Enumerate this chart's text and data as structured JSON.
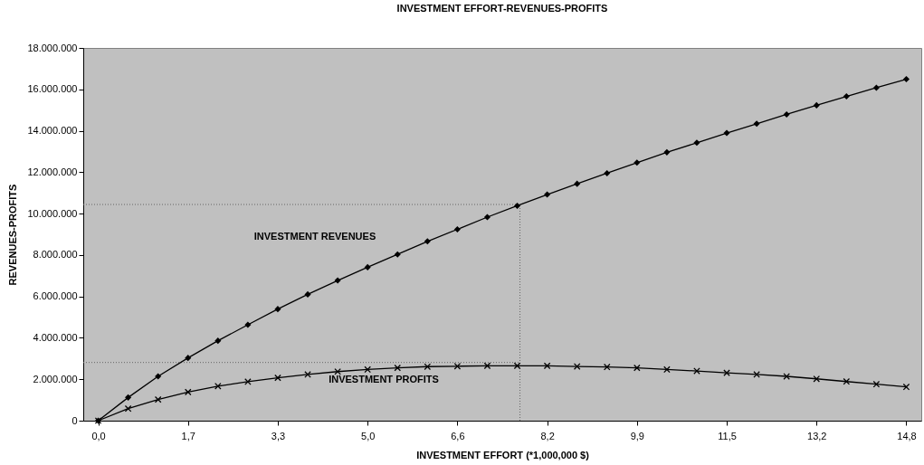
{
  "chart_data": {
    "type": "line",
    "title": "INVESTMENT EFFORT-REVENUES-PROFITS",
    "xlabel": "INVESTMENT EFFORT (*1,000,000 $)",
    "ylabel": "REVENUES-PROFITS",
    "x": [
      0,
      0.55,
      1.1,
      1.65,
      2.2,
      2.75,
      3.3,
      3.85,
      4.4,
      4.95,
      5.5,
      6.05,
      6.6,
      7.15,
      7.7,
      8.25,
      8.8,
      9.35,
      9.9,
      10.45,
      11.0,
      11.55,
      12.1,
      12.65,
      13.2,
      13.75,
      14.3,
      14.85
    ],
    "series": [
      {
        "color": "#000000",
        "marker": "diamond",
        "values": [
          0,
          1120000,
          2140000,
          3030000,
          3860000,
          4630000,
          5390000,
          6100000,
          6770000,
          7410000,
          8030000,
          8660000,
          9240000,
          9830000,
          10380000,
          10920000,
          11440000,
          11950000,
          12460000,
          12960000,
          13420000,
          13890000,
          14340000,
          14790000,
          15230000,
          15660000,
          16080000,
          16490000
        ]
      },
      {
        "color": "#000000",
        "marker": "cross",
        "values": [
          0,
          580000,
          1020000,
          1380000,
          1670000,
          1880000,
          2070000,
          2230000,
          2370000,
          2470000,
          2550000,
          2610000,
          2630000,
          2650000,
          2650000,
          2650000,
          2620000,
          2590000,
          2550000,
          2470000,
          2400000,
          2310000,
          2230000,
          2140000,
          2020000,
          1890000,
          1760000,
          1630000
        ]
      }
    ],
    "xlim": [
      -0.275,
      15.125
    ],
    "xticks": [
      {
        "value": 0,
        "label": "0,0"
      },
      {
        "value": 1.65,
        "label": "1,7"
      },
      {
        "value": 3.3,
        "label": "3,3"
      },
      {
        "value": 4.95,
        "label": "5,0"
      },
      {
        "value": 6.6,
        "label": "6,6"
      },
      {
        "value": 8.25,
        "label": "8,2"
      },
      {
        "value": 9.9,
        "label": "9,9"
      },
      {
        "value": 11.55,
        "label": "11,5"
      },
      {
        "value": 13.2,
        "label": "13,2"
      },
      {
        "value": 14.85,
        "label": "14,8"
      }
    ],
    "ylim": [
      0,
      18000000
    ],
    "yticks": [
      0,
      {
        "value": 2000000,
        "label": "2.000.000"
      },
      {
        "value": 4000000,
        "label": "4.000.000"
      },
      {
        "value": 6000000,
        "label": "6.000.000"
      },
      {
        "value": 8000000,
        "label": "8.000.000"
      },
      {
        "value": 10000000,
        "label": "10.000.000"
      },
      {
        "value": 12000000,
        "label": "12.000.000"
      },
      {
        "value": 14000000,
        "label": "14.000.000"
      },
      {
        "value": 16000000,
        "label": "16.000.000"
      },
      {
        "value": 18000000,
        "label": "18.000.000"
      }
    ],
    "ref_lines": [
      {
        "axis": "y",
        "value": 10440000,
        "color": "#666666",
        "line_style": "dotted"
      },
      {
        "axis": "y",
        "value": 2810000,
        "color": "#666666",
        "line_style": "dotted"
      },
      {
        "axis": "x",
        "value": 7.75,
        "color": "#666666",
        "line_style": "dotted"
      }
    ],
    "annotations": [
      "INVESTMENT REVENUES",
      "INVESTMENT PROFITS"
    ]
  }
}
